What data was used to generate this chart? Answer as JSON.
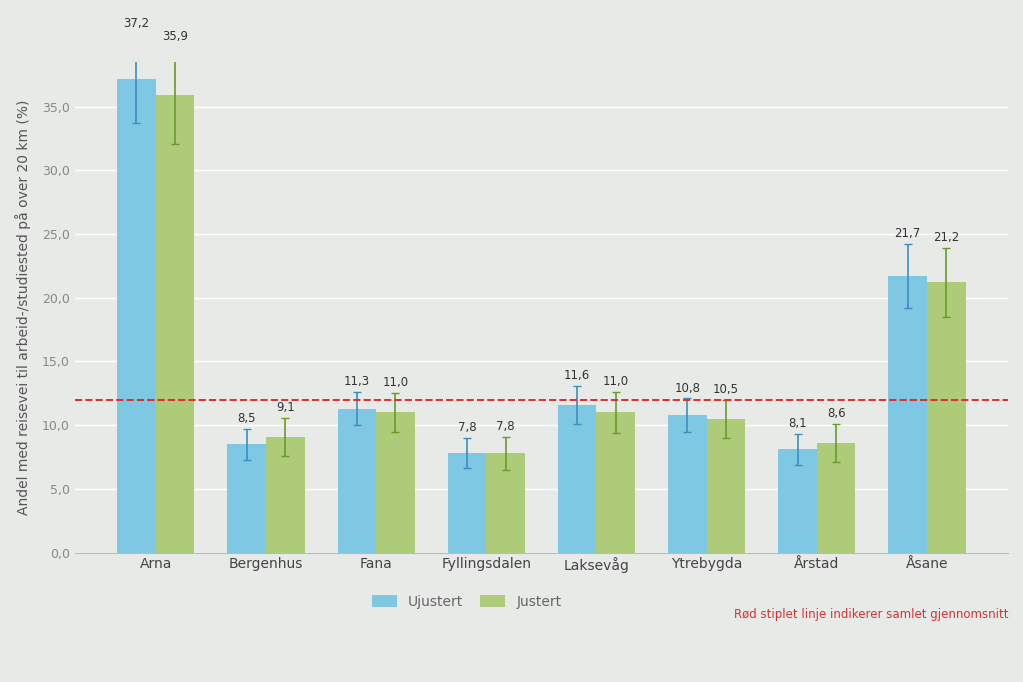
{
  "categories": [
    "Arna",
    "Bergenhus",
    "Fana",
    "Fyllingsdalen",
    "Laksevåg",
    "Ytrebygda",
    "Årstad",
    "Åsane"
  ],
  "ujustert": [
    37.2,
    8.5,
    11.3,
    7.8,
    11.6,
    10.8,
    8.1,
    21.7
  ],
  "justert": [
    35.9,
    9.1,
    11.0,
    7.8,
    11.0,
    10.5,
    8.6,
    21.2
  ],
  "ujustert_err_low": [
    3.5,
    1.2,
    1.3,
    1.2,
    1.5,
    1.3,
    1.2,
    2.5
  ],
  "ujustert_err_high": [
    3.5,
    1.2,
    1.3,
    1.2,
    1.5,
    1.3,
    1.2,
    2.5
  ],
  "justert_err_low": [
    3.8,
    1.5,
    1.5,
    1.3,
    1.6,
    1.5,
    1.5,
    2.7
  ],
  "justert_err_high": [
    3.8,
    1.5,
    1.5,
    1.3,
    1.6,
    1.5,
    1.5,
    2.7
  ],
  "reference_line": 12.0,
  "ylabel": "Andel med reisevei til arbeid-/studiested på over 20 km (%)",
  "ylim": [
    0,
    38.5
  ],
  "yticks": [
    0.0,
    5.0,
    10.0,
    15.0,
    20.0,
    25.0,
    30.0,
    35.0
  ],
  "bar_color_ujustert": "#7EC8E3",
  "bar_color_justert": "#AECB7A",
  "err_color_ujustert": "#3A8FC0",
  "err_color_justert": "#6A9A2A",
  "ref_line_color": "#D93030",
  "legend_ujustert": "Ujustert",
  "legend_justert": "Justert",
  "ref_line_label": "Rød stiplet linje indikerer samlet gjennomsnitt",
  "background_color": "#E8EAE8",
  "plot_background_color": "#E8EAE8",
  "bar_width": 0.35,
  "label_fontsize": 8.5,
  "axis_label_fontsize": 10,
  "tick_fontsize": 9,
  "ylabel_color": "#555555",
  "tick_color": "#888888",
  "xticklabel_color": "#444444"
}
